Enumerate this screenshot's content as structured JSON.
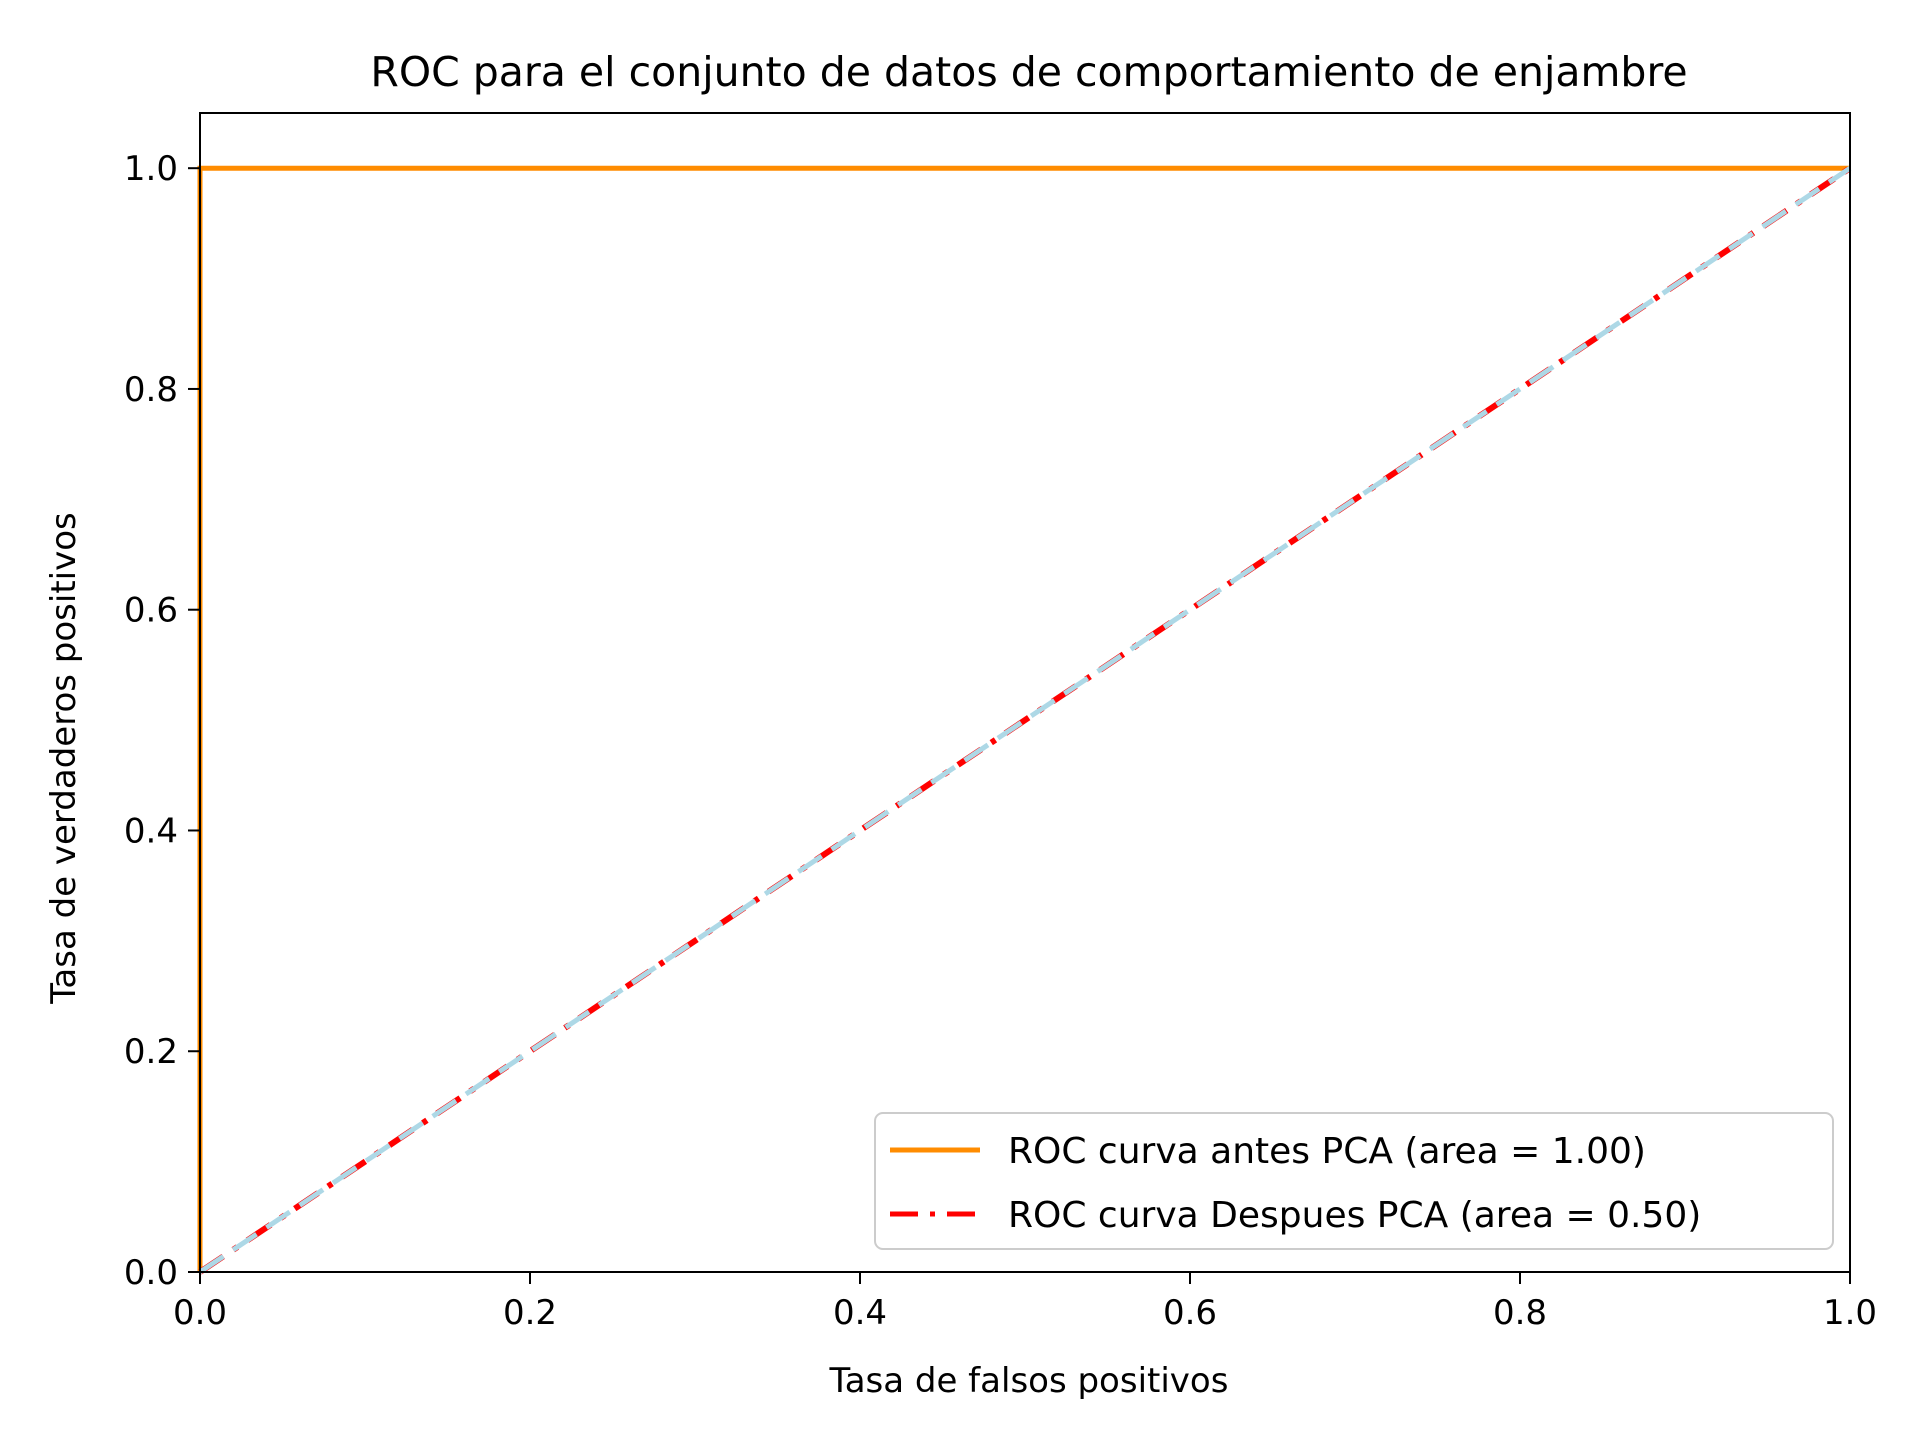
{
  "chart_data": {
    "type": "line",
    "title": "ROC para el conjunto de datos de comportamiento de enjambre",
    "xlabel": "Tasa de falsos positivos",
    "ylabel": "Tasa de verdaderos positivos",
    "xlim": [
      0.0,
      1.0
    ],
    "ylim": [
      0.0,
      1.05
    ],
    "xticks": [
      0.0,
      0.2,
      0.4,
      0.6,
      0.8,
      1.0
    ],
    "xtick_labels": [
      "0.0",
      "0.2",
      "0.4",
      "0.6",
      "0.8",
      "1.0"
    ],
    "yticks": [
      0.0,
      0.2,
      0.4,
      0.6,
      0.8,
      1.0
    ],
    "ytick_labels": [
      "0.0",
      "0.2",
      "0.4",
      "0.6",
      "0.8",
      "1.0"
    ],
    "grid": false,
    "legend_position": "bottom-right",
    "series": [
      {
        "name": "ROC curva antes PCA (area = 1.00)",
        "color": "#ff8c00",
        "style": "solid",
        "x": [
          0.0,
          0.0,
          1.0
        ],
        "y": [
          0.0,
          1.0,
          1.0
        ]
      },
      {
        "name": "ROC curva Despues PCA (area = 0.50)",
        "color": "#ff0000",
        "style": "dashdot",
        "x": [
          0.0,
          1.0
        ],
        "y": [
          0.0,
          1.0
        ]
      },
      {
        "color": "#add8e6",
        "style": "dashed",
        "x": [
          0.0,
          1.0
        ],
        "y": [
          0.0,
          1.0
        ]
      }
    ]
  }
}
